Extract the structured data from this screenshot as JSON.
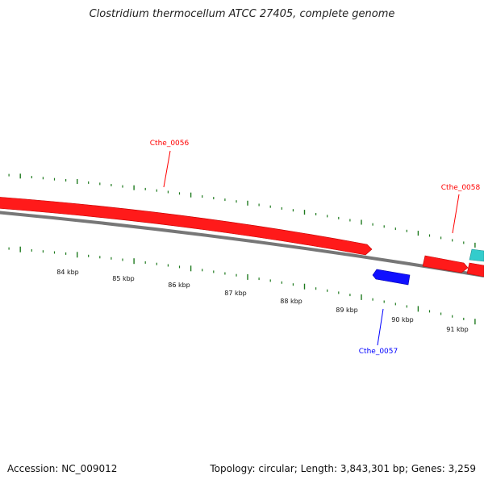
{
  "title": "Clostridium thermocellum ATCC 27405, complete genome",
  "footer": {
    "accession": "Accession: NC_009012",
    "summary": "Topology: circular; Length: 3,843,301 bp; Genes: 3,259"
  },
  "scale_labels": [
    "84 kbp",
    "85 kbp",
    "86 kbp",
    "87 kbp",
    "88 kbp",
    "89 kbp",
    "90 kbp",
    "91 kbp"
  ],
  "genes": [
    {
      "name": "Cthe_0056",
      "strand": "+",
      "color": "#ff0000"
    },
    {
      "name": "Cthe_0057",
      "strand": "-",
      "color": "#0000ff"
    },
    {
      "name": "Cthe_0058",
      "strand": "+",
      "color": "#ff0000"
    }
  ],
  "colors": {
    "forward_cds": "#ff0000",
    "reverse_cds": "#0000ff",
    "other_feature": "#33cccc",
    "backbone": "#777777",
    "ticks": "#1e7a1e"
  }
}
